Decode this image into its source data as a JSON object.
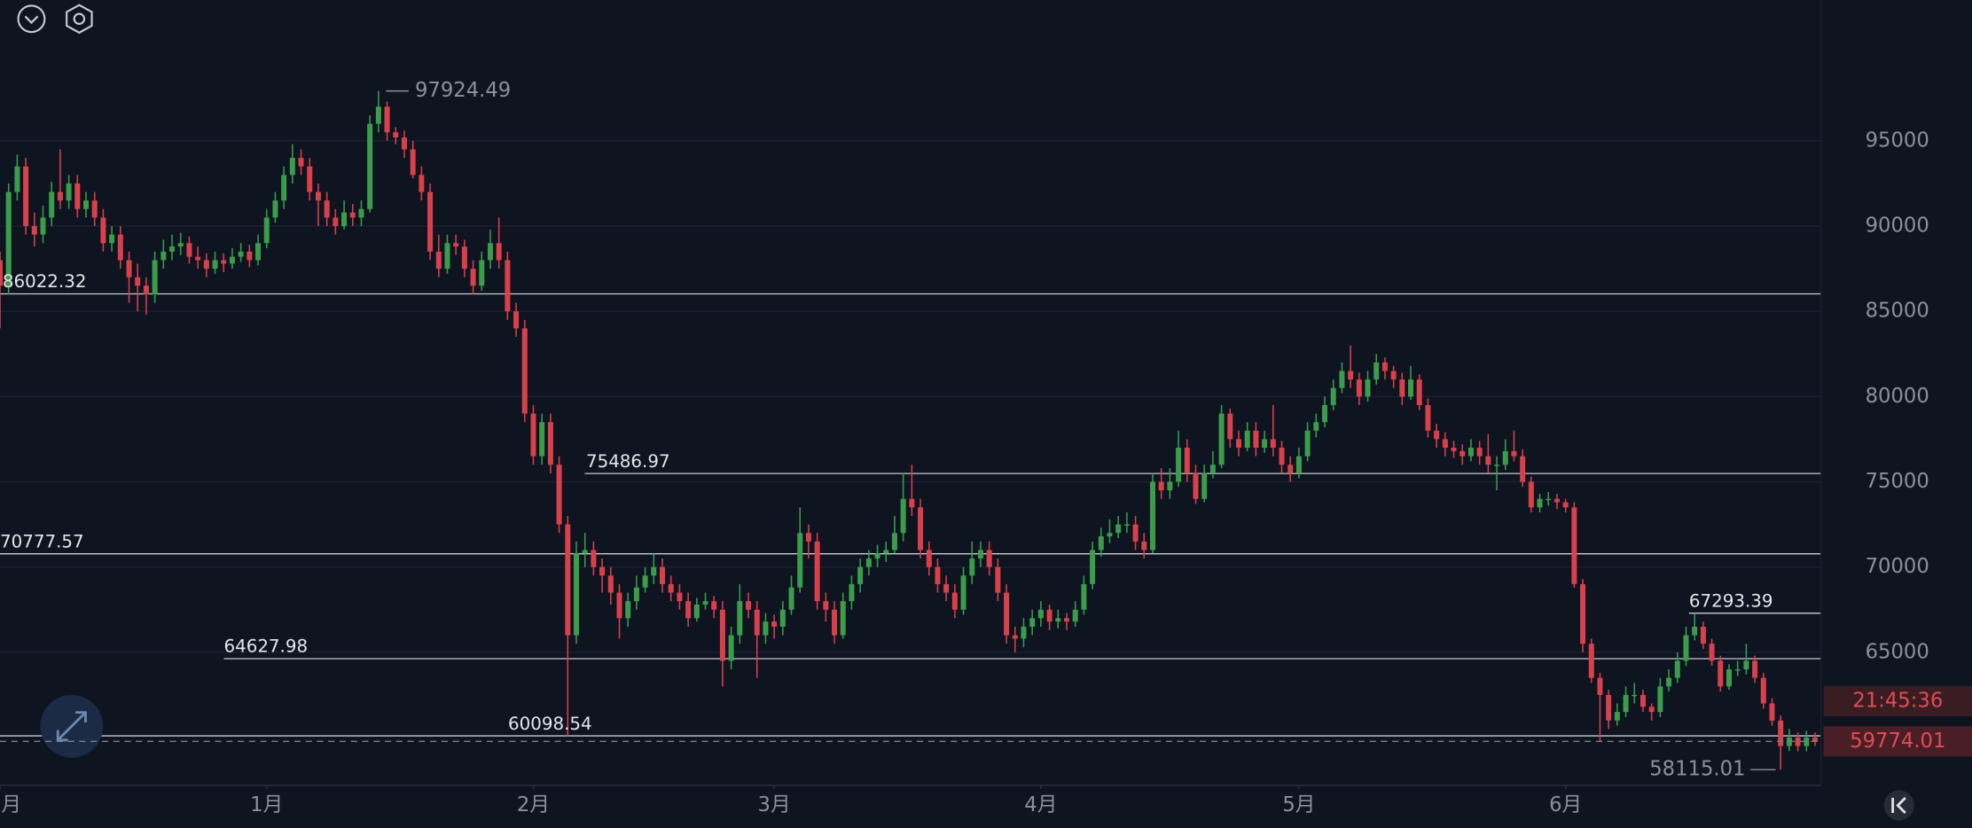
{
  "chart_data": {
    "type": "candlestick",
    "up_color": "#3b9c4c",
    "down_color": "#d8404b",
    "ylim": [
      57200,
      103260
    ],
    "yticks": [
      65000,
      70000,
      75000,
      80000,
      85000,
      90000,
      95000
    ],
    "xlim": [
      0,
      211.7
    ],
    "xticks": [
      {
        "value": 0,
        "label": "月"
      },
      {
        "value": 31,
        "label": "1月"
      },
      {
        "value": 62,
        "label": "2月"
      },
      {
        "value": 90,
        "label": "3月"
      },
      {
        "value": 121,
        "label": "4月"
      },
      {
        "value": 151,
        "label": "5月"
      },
      {
        "value": 182,
        "label": "6月"
      }
    ],
    "grid": true,
    "levels": [
      86022.32,
      75486.97,
      70777.57,
      64627.98,
      60098.54,
      67293.39
    ],
    "countdown": "21:45:36",
    "ohlc": [
      [
        88000,
        88500,
        84000,
        86500
      ],
      [
        86500,
        92500,
        86000,
        92000
      ],
      [
        92000,
        94200,
        91500,
        93500
      ],
      [
        93500,
        94000,
        89500,
        90000
      ],
      [
        90000,
        90800,
        88800,
        89500
      ],
      [
        89500,
        91200,
        89000,
        90500
      ],
      [
        90500,
        92600,
        90000,
        92000
      ],
      [
        92000,
        94500,
        91000,
        91500
      ],
      [
        91500,
        93000,
        91000,
        92500
      ],
      [
        92500,
        93000,
        90500,
        91000
      ],
      [
        91000,
        92000,
        90500,
        91500
      ],
      [
        91500,
        92000,
        90000,
        90500
      ],
      [
        90500,
        91000,
        88500,
        89000
      ],
      [
        89000,
        90000,
        88500,
        89500
      ],
      [
        89500,
        90000,
        87500,
        88000
      ],
      [
        88000,
        88500,
        85500,
        87000
      ],
      [
        87000,
        87800,
        85000,
        86500
      ],
      [
        86500,
        87000,
        84800,
        86000
      ],
      [
        86000,
        88500,
        85500,
        88000
      ],
      [
        88000,
        89200,
        87500,
        88500
      ],
      [
        88500,
        89500,
        88000,
        88800
      ],
      [
        88800,
        89600,
        88300,
        89000
      ],
      [
        89000,
        89400,
        87800,
        88200
      ],
      [
        88200,
        88800,
        87500,
        88000
      ],
      [
        88000,
        88400,
        87000,
        87500
      ],
      [
        87500,
        88500,
        87200,
        88000
      ],
      [
        88000,
        88400,
        87300,
        87800
      ],
      [
        87800,
        88700,
        87500,
        88200
      ],
      [
        88200,
        89000,
        87900,
        88500
      ],
      [
        88500,
        88900,
        87600,
        88000
      ],
      [
        88000,
        89500,
        87700,
        89000
      ],
      [
        89000,
        91000,
        88700,
        90500
      ],
      [
        90500,
        92000,
        90200,
        91500
      ],
      [
        91500,
        93500,
        91000,
        93000
      ],
      [
        93000,
        94800,
        92500,
        94000
      ],
      [
        94000,
        94500,
        93000,
        93500
      ],
      [
        93500,
        94000,
        91500,
        92000
      ],
      [
        92000,
        92500,
        90000,
        91500
      ],
      [
        91500,
        92000,
        90000,
        90500
      ],
      [
        90500,
        91000,
        89500,
        90000
      ],
      [
        90000,
        91500,
        89800,
        90800
      ],
      [
        90800,
        91300,
        90000,
        90500
      ],
      [
        90500,
        91500,
        90000,
        91000
      ],
      [
        91000,
        96500,
        90800,
        96000
      ],
      [
        96000,
        97924.49,
        95500,
        97000
      ],
      [
        97000,
        97300,
        95000,
        95500
      ],
      [
        95500,
        95800,
        94800,
        95200
      ],
      [
        95200,
        95600,
        94000,
        94500
      ],
      [
        94500,
        95000,
        92800,
        93000
      ],
      [
        93000,
        93500,
        91500,
        92000
      ],
      [
        92000,
        92500,
        88000,
        88500
      ],
      [
        88500,
        89500,
        87000,
        87500
      ],
      [
        87500,
        89500,
        87200,
        89000
      ],
      [
        89000,
        89500,
        88300,
        88800
      ],
      [
        88800,
        89200,
        87000,
        87500
      ],
      [
        87500,
        88000,
        86000,
        86500
      ],
      [
        86500,
        88500,
        86200,
        88000
      ],
      [
        88000,
        89800,
        87500,
        89000
      ],
      [
        89000,
        90500,
        87500,
        88000
      ],
      [
        88000,
        88500,
        84500,
        85000
      ],
      [
        85000,
        85500,
        83500,
        84000
      ],
      [
        84000,
        84500,
        78500,
        79000
      ],
      [
        79000,
        79500,
        76000,
        76500
      ],
      [
        76500,
        79000,
        76000,
        78500
      ],
      [
        78500,
        79000,
        75500,
        76000
      ],
      [
        76000,
        76500,
        72000,
        72500
      ],
      [
        72500,
        73000,
        60098.54,
        66000
      ],
      [
        66000,
        71500,
        65500,
        70800
      ],
      [
        70800,
        72000,
        70000,
        71000
      ],
      [
        71000,
        71500,
        69500,
        70000
      ],
      [
        70000,
        70500,
        68500,
        69500
      ],
      [
        69500,
        70000,
        67800,
        68500
      ],
      [
        68500,
        69000,
        65800,
        67000
      ],
      [
        67000,
        68500,
        66500,
        68000
      ],
      [
        68000,
        69500,
        67500,
        68800
      ],
      [
        68800,
        70000,
        68500,
        69500
      ],
      [
        69500,
        70800,
        69000,
        70000
      ],
      [
        70000,
        70500,
        68500,
        69000
      ],
      [
        69000,
        69500,
        68000,
        68500
      ],
      [
        68500,
        69000,
        67500,
        68000
      ],
      [
        68000,
        68500,
        66500,
        67000
      ],
      [
        67000,
        68200,
        66800,
        67800
      ],
      [
        67800,
        68500,
        67500,
        68000
      ],
      [
        68000,
        68300,
        67000,
        67500
      ],
      [
        67500,
        68000,
        63000,
        64500
      ],
      [
        64500,
        66500,
        64000,
        66000
      ],
      [
        66000,
        69000,
        65500,
        68000
      ],
      [
        68000,
        68500,
        67000,
        67500
      ],
      [
        67500,
        68000,
        63500,
        66000
      ],
      [
        66000,
        67300,
        65500,
        66800
      ],
      [
        66800,
        67200,
        65800,
        66500
      ],
      [
        66500,
        68000,
        66000,
        67500
      ],
      [
        67500,
        69500,
        67200,
        68800
      ],
      [
        68800,
        73500,
        68500,
        72000
      ],
      [
        72000,
        72500,
        70500,
        71500
      ],
      [
        71500,
        72000,
        67500,
        68000
      ],
      [
        68000,
        68500,
        66800,
        67500
      ],
      [
        67500,
        68000,
        65500,
        66000
      ],
      [
        66000,
        68500,
        65800,
        68000
      ],
      [
        68000,
        69500,
        67500,
        69000
      ],
      [
        69000,
        70500,
        68500,
        70000
      ],
      [
        70000,
        71000,
        69500,
        70500
      ],
      [
        70500,
        71300,
        70000,
        70800
      ],
      [
        70800,
        71500,
        70300,
        71000
      ],
      [
        71000,
        73000,
        70800,
        72000
      ],
      [
        72000,
        75500,
        71500,
        74000
      ],
      [
        74000,
        76000,
        73000,
        73500
      ],
      [
        73500,
        74000,
        70500,
        71000
      ],
      [
        71000,
        71500,
        69500,
        70000
      ],
      [
        70000,
        70500,
        68500,
        69000
      ],
      [
        69000,
        69500,
        68000,
        68500
      ],
      [
        68500,
        69000,
        67000,
        67500
      ],
      [
        67500,
        70000,
        67200,
        69500
      ],
      [
        69500,
        71500,
        69000,
        70500
      ],
      [
        70500,
        71500,
        70000,
        71000
      ],
      [
        71000,
        71500,
        69500,
        70000
      ],
      [
        70000,
        70500,
        68000,
        68500
      ],
      [
        68500,
        69000,
        65500,
        66000
      ],
      [
        66000,
        66500,
        65000,
        65800
      ],
      [
        65800,
        67000,
        65300,
        66500
      ],
      [
        66500,
        67500,
        66000,
        67000
      ],
      [
        67000,
        68000,
        66500,
        67500
      ],
      [
        67500,
        67800,
        66300,
        66800
      ],
      [
        66800,
        67500,
        66400,
        67000
      ],
      [
        67000,
        67300,
        66300,
        66800
      ],
      [
        66800,
        68000,
        66500,
        67500
      ],
      [
        67500,
        69500,
        67200,
        69000
      ],
      [
        69000,
        71500,
        68700,
        71000
      ],
      [
        71000,
        72300,
        70600,
        71800
      ],
      [
        71800,
        72800,
        71400,
        72000
      ],
      [
        72000,
        73000,
        71700,
        72500
      ],
      [
        72500,
        73200,
        72000,
        72500
      ],
      [
        72500,
        73000,
        71000,
        71500
      ],
      [
        71500,
        72000,
        70500,
        71000
      ],
      [
        71000,
        75500,
        70800,
        75000
      ],
      [
        75000,
        75800,
        74000,
        74500
      ],
      [
        74500,
        75800,
        74000,
        75000
      ],
      [
        75000,
        78000,
        74700,
        77000
      ],
      [
        77000,
        77500,
        75000,
        75500
      ],
      [
        75500,
        76000,
        73700,
        74000
      ],
      [
        74000,
        76000,
        73800,
        75500
      ],
      [
        75500,
        76800,
        75200,
        76000
      ],
      [
        76000,
        79500,
        75800,
        79000
      ],
      [
        79000,
        79300,
        77000,
        77500
      ],
      [
        77500,
        78000,
        76500,
        77000
      ],
      [
        77000,
        78500,
        76800,
        78000
      ],
      [
        78000,
        78500,
        76500,
        77000
      ],
      [
        77000,
        78000,
        76700,
        77500
      ],
      [
        77500,
        79500,
        76500,
        77000
      ],
      [
        77000,
        77400,
        75500,
        76000
      ],
      [
        76000,
        76500,
        75000,
        75500
      ],
      [
        75500,
        77000,
        75200,
        76500
      ],
      [
        76500,
        78500,
        76200,
        78000
      ],
      [
        78000,
        79000,
        77600,
        78500
      ],
      [
        78500,
        80000,
        78200,
        79500
      ],
      [
        79500,
        81000,
        79200,
        80500
      ],
      [
        80500,
        82000,
        80200,
        81500
      ],
      [
        81500,
        83000,
        80500,
        81000
      ],
      [
        81000,
        81400,
        79500,
        80000
      ],
      [
        80000,
        81500,
        79700,
        81000
      ],
      [
        81000,
        82500,
        80700,
        82000
      ],
      [
        82000,
        82300,
        81000,
        81500
      ],
      [
        81500,
        81800,
        80500,
        81000
      ],
      [
        81000,
        81400,
        79500,
        80000
      ],
      [
        80000,
        81800,
        79800,
        81000
      ],
      [
        81000,
        81300,
        79200,
        79500
      ],
      [
        79500,
        79900,
        77600,
        78000
      ],
      [
        78000,
        78400,
        77000,
        77500
      ],
      [
        77500,
        77900,
        76500,
        77000
      ],
      [
        77000,
        77400,
        76400,
        76800
      ],
      [
        76800,
        77200,
        76000,
        76500
      ],
      [
        76500,
        77500,
        76200,
        77000
      ],
      [
        77000,
        77400,
        76000,
        76500
      ],
      [
        76500,
        77800,
        75500,
        76000
      ],
      [
        76000,
        76500,
        74500,
        76000
      ],
      [
        76000,
        77500,
        75700,
        76800
      ],
      [
        76800,
        78000,
        76200,
        76500
      ],
      [
        76500,
        76900,
        74700,
        75000
      ],
      [
        75000,
        75300,
        73200,
        73500
      ],
      [
        73500,
        74300,
        73200,
        74000
      ],
      [
        74000,
        74400,
        73600,
        74000
      ],
      [
        74000,
        74300,
        73400,
        73800
      ],
      [
        73800,
        74000,
        73200,
        73500
      ],
      [
        73500,
        73800,
        68800,
        69000
      ],
      [
        69000,
        69300,
        65000,
        65500
      ],
      [
        65500,
        65800,
        63200,
        63500
      ],
      [
        63500,
        63800,
        59800,
        62500
      ],
      [
        62500,
        62800,
        60500,
        61000
      ],
      [
        61000,
        62000,
        60700,
        61500
      ],
      [
        61500,
        63000,
        61200,
        62500
      ],
      [
        62500,
        63200,
        62000,
        62500
      ],
      [
        62500,
        62800,
        61500,
        61800
      ],
      [
        61800,
        62000,
        61000,
        61500
      ],
      [
        61500,
        63500,
        61200,
        63000
      ],
      [
        63000,
        64000,
        62700,
        63500
      ],
      [
        63500,
        65000,
        63200,
        64500
      ],
      [
        64500,
        66500,
        64200,
        66000
      ],
      [
        66000,
        67293.39,
        65700,
        66500
      ],
      [
        66500,
        66800,
        65200,
        65500
      ],
      [
        65500,
        65800,
        64200,
        64500
      ],
      [
        64500,
        64800,
        62700,
        63000
      ],
      [
        63000,
        64300,
        62800,
        64000
      ],
      [
        64000,
        64500,
        63600,
        64000
      ],
      [
        64000,
        65500,
        63700,
        64500
      ],
      [
        64500,
        64800,
        63200,
        63500
      ],
      [
        63500,
        63800,
        61700,
        62000
      ],
      [
        62000,
        62300,
        60700,
        61000
      ],
      [
        61000,
        61300,
        58115.01,
        59500
      ],
      [
        59500,
        60500,
        59200,
        60000
      ],
      [
        60000,
        60300,
        59200,
        59500
      ],
      [
        59500,
        60400,
        59200,
        60000
      ],
      [
        60000,
        60300,
        59500,
        59774.01
      ]
    ]
  }
}
